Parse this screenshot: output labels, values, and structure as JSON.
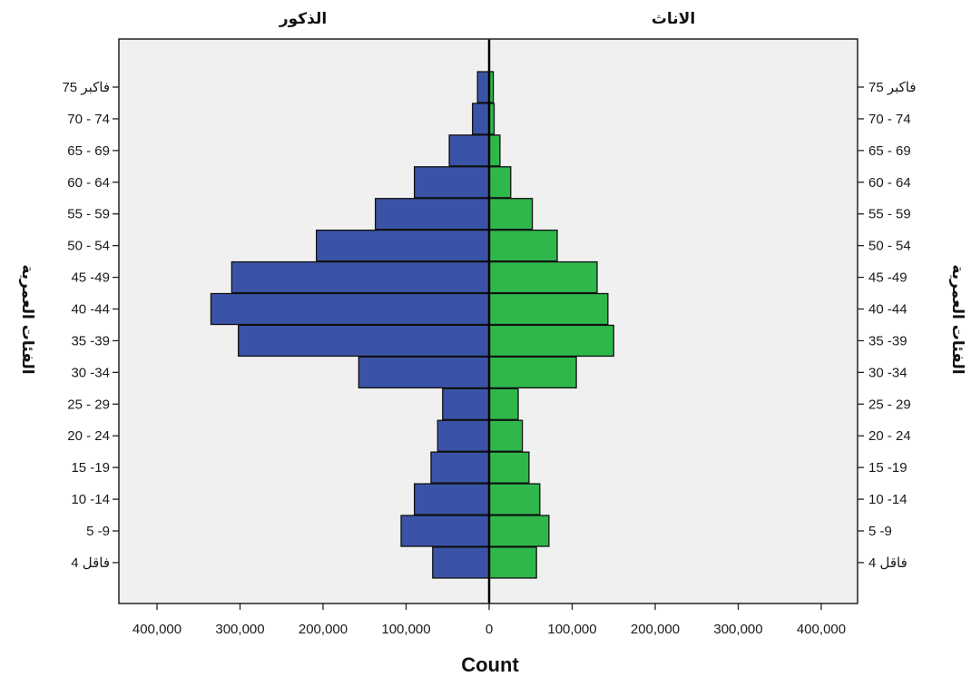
{
  "chart_data": {
    "type": "bar",
    "orientation": "horizontal",
    "layout": "population-pyramid",
    "left_title": "الذكور",
    "right_title": "الاناث",
    "xlabel": "Count",
    "ylabel": "الفئات العمرية",
    "xlim": [
      -400000,
      400000
    ],
    "xticks": [
      {
        "value": -400000,
        "label": "400,000"
      },
      {
        "value": -300000,
        "label": "300,000"
      },
      {
        "value": -200000,
        "label": "200,000"
      },
      {
        "value": -100000,
        "label": "100,000"
      },
      {
        "value": 0,
        "label": "0"
      },
      {
        "value": 100000,
        "label": "100,000"
      },
      {
        "value": 200000,
        "label": "200,000"
      },
      {
        "value": 300000,
        "label": "300,000"
      },
      {
        "value": 400000,
        "label": "400,000"
      }
    ],
    "categories": [
      "75 فاكبر",
      "70 - 74",
      "65 - 69",
      "60 - 64",
      "55 - 59",
      "50 - 54",
      "45 -49",
      "40 -44",
      "35 -39",
      "30 -34",
      "25 - 29",
      "20 - 24",
      "15 -19",
      "10 -14",
      "5 -9",
      "4 فاقل"
    ],
    "series": [
      {
        "name": "الذكور",
        "side": "left",
        "color": "#3b53a7",
        "values": [
          14000,
          20000,
          48000,
          90000,
          137000,
          208000,
          310000,
          335000,
          302000,
          157000,
          56000,
          62000,
          70000,
          90000,
          106000,
          68000
        ]
      },
      {
        "name": "الاناث",
        "side": "right",
        "color": "#2eb84b",
        "values": [
          5000,
          6000,
          13000,
          26000,
          52000,
          82000,
          130000,
          143000,
          150000,
          105000,
          35000,
          40000,
          48000,
          61000,
          72000,
          57000
        ]
      }
    ],
    "grid": false,
    "background": "#f0f0f0"
  }
}
